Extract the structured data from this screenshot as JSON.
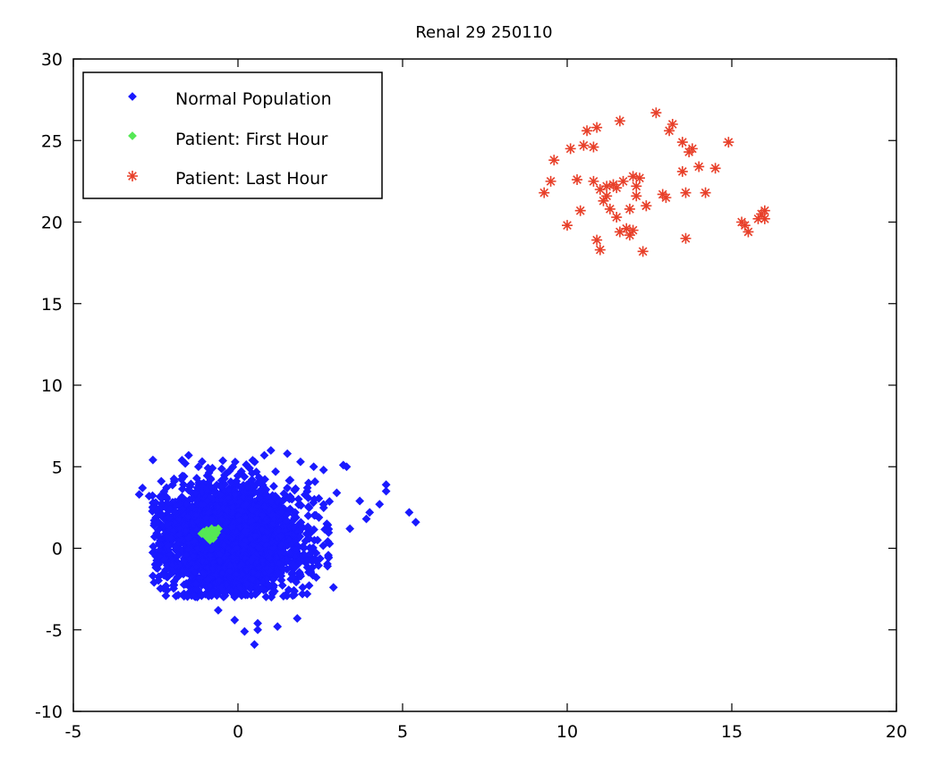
{
  "chart_data": {
    "type": "scatter",
    "title": "Renal 29 250110",
    "xlabel": "",
    "ylabel": "",
    "xlim": [
      -5,
      20
    ],
    "ylim": [
      -10,
      30
    ],
    "xticks": [
      "-5",
      "0",
      "5",
      "10",
      "15",
      "20"
    ],
    "yticks": [
      "-10",
      "-5",
      "0",
      "5",
      "10",
      "15",
      "20",
      "25",
      "30"
    ],
    "xtick_values": [
      -5,
      0,
      5,
      10,
      15,
      20
    ],
    "ytick_values": [
      -10,
      -5,
      0,
      5,
      10,
      15,
      20,
      25,
      30
    ],
    "grid": false,
    "legend_position": "top-left",
    "series": [
      {
        "name": "Normal Population",
        "marker": "dot",
        "color": "#1a1aff",
        "cluster": {
          "center": [
            -0.2,
            0.5
          ],
          "sx": 1.1,
          "sy": 1.7,
          "count": 2600,
          "seed": 7
        },
        "x": [
          -3.0,
          -2.9,
          -2.7,
          -2.5,
          -1.7,
          -1.5,
          -1.6,
          -1.2,
          0.8,
          1.0,
          1.5,
          1.9,
          2.3,
          2.6,
          3.2,
          3.3,
          4.0,
          4.3,
          4.5,
          4.5,
          5.2,
          5.4,
          3.4,
          2.7,
          1.7,
          1.2,
          0.6,
          0.2,
          -0.1,
          0.5,
          0.6,
          -0.6,
          -2.0,
          -2.4,
          2.9,
          2.1,
          1.8,
          3.7,
          3.9,
          3.0
        ],
        "y": [
          3.3,
          3.7,
          3.2,
          2.8,
          5.4,
          5.7,
          5.2,
          5.0,
          5.7,
          6.0,
          5.8,
          5.3,
          5.0,
          4.8,
          5.1,
          5.0,
          2.2,
          2.7,
          3.9,
          3.5,
          2.2,
          1.6,
          1.2,
          1.5,
          1.3,
          -4.8,
          -5.0,
          -5.1,
          -4.4,
          -5.9,
          -4.6,
          -3.8,
          -1.0,
          -0.5,
          -2.4,
          -2.8,
          -4.3,
          2.9,
          1.8,
          3.4
        ]
      },
      {
        "name": "Patient: First Hour",
        "marker": "dot",
        "color": "#55e855",
        "x": [
          -1.0,
          -0.9,
          -0.8,
          -0.7,
          -0.9,
          -0.8,
          -1.1,
          -0.7,
          -0.6,
          -0.8,
          -0.95,
          -0.75,
          -0.85,
          -0.65,
          -1.05,
          -0.9
        ],
        "y": [
          0.8,
          1.0,
          0.7,
          1.1,
          0.6,
          0.9,
          0.9,
          0.8,
          1.2,
          1.2,
          1.1,
          0.6,
          0.5,
          0.95,
          1.0,
          0.75
        ]
      },
      {
        "name": "Patient: Last Hour",
        "marker": "asterisk",
        "color": "#e8402a",
        "x": [
          9.3,
          9.5,
          9.6,
          10.0,
          10.1,
          10.3,
          10.4,
          10.5,
          10.6,
          10.8,
          10.8,
          10.9,
          10.9,
          11.0,
          11.0,
          11.1,
          11.2,
          11.2,
          11.3,
          11.4,
          11.5,
          11.5,
          11.6,
          11.6,
          11.7,
          11.8,
          11.9,
          11.9,
          12.0,
          12.0,
          12.1,
          12.1,
          12.2,
          12.3,
          12.4,
          12.4,
          12.7,
          12.9,
          13.0,
          13.1,
          13.2,
          13.5,
          13.5,
          13.6,
          13.6,
          13.7,
          13.8,
          14.0,
          14.2,
          14.5,
          14.9,
          15.3,
          15.4,
          15.5,
          15.8,
          15.9,
          16.0,
          16.0
        ],
        "y": [
          21.8,
          22.5,
          23.8,
          19.8,
          24.5,
          22.6,
          20.7,
          24.7,
          25.6,
          22.5,
          24.6,
          25.8,
          18.9,
          22.0,
          18.3,
          21.3,
          21.6,
          22.2,
          20.8,
          22.3,
          20.3,
          22.1,
          26.2,
          19.4,
          22.5,
          19.6,
          19.2,
          20.8,
          22.8,
          19.5,
          21.6,
          22.2,
          22.7,
          18.2,
          21.0,
          21.0,
          26.7,
          21.7,
          21.5,
          25.6,
          26.0,
          23.1,
          24.9,
          21.8,
          19.0,
          24.3,
          24.5,
          23.4,
          21.8,
          23.3,
          24.9,
          20.0,
          19.8,
          19.4,
          20.2,
          20.5,
          20.7,
          20.2
        ]
      }
    ]
  }
}
